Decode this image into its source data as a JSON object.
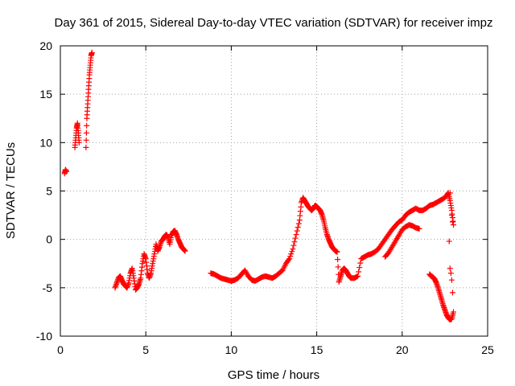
{
  "chart_data": {
    "type": "scatter",
    "title": "Day 361 of 2015, Sidereal Day-to-day VTEC variation (SDTVAR) for receiver impz",
    "xlabel": "GPS time / hours",
    "ylabel": "SDTVAR / TECUs",
    "xlim": [
      0,
      25
    ],
    "ylim": [
      -10,
      20
    ],
    "xticks": [
      0,
      5,
      10,
      15,
      20,
      25
    ],
    "yticks": [
      -10,
      -5,
      0,
      5,
      10,
      15,
      20
    ],
    "grid": true,
    "marker": "+",
    "series": [
      {
        "name": "SDTVAR",
        "color": "#ff0000",
        "x": [
          0.25,
          0.3,
          0.35,
          0.85,
          0.9,
          0.95,
          1.0,
          1.05,
          1.1,
          1.5,
          1.55,
          1.6,
          1.65,
          1.7,
          1.75,
          1.8,
          1.85,
          3.2,
          3.3,
          3.4,
          3.5,
          3.6,
          3.7,
          3.8,
          3.9,
          4.0,
          4.1,
          4.2,
          4.3,
          4.4,
          4.5,
          4.6,
          4.7,
          4.8,
          4.9,
          5.0,
          5.1,
          5.2,
          5.3,
          5.4,
          5.5,
          5.6,
          5.7,
          5.8,
          5.9,
          6.0,
          6.1,
          6.2,
          6.3,
          6.4,
          6.5,
          6.6,
          6.7,
          6.8,
          6.9,
          7.0,
          7.1,
          7.2,
          7.3,
          8.8,
          9.0,
          9.2,
          9.4,
          9.6,
          9.8,
          10.0,
          10.2,
          10.4,
          10.6,
          10.8,
          11.0,
          11.2,
          11.4,
          11.6,
          11.8,
          12.0,
          12.2,
          12.4,
          12.6,
          12.8,
          13.0,
          13.2,
          13.4,
          13.6,
          13.8,
          14.0,
          14.1,
          14.2,
          14.3,
          14.4,
          14.5,
          14.6,
          14.7,
          14.8,
          14.9,
          15.0,
          15.1,
          15.2,
          15.3,
          15.4,
          15.5,
          15.6,
          15.7,
          15.8,
          15.9,
          16.0,
          16.1,
          16.2,
          16.3,
          16.4,
          16.5,
          16.6,
          16.7,
          16.8,
          16.9,
          17.0,
          17.2,
          17.4,
          17.6,
          17.8,
          18.0,
          18.2,
          18.4,
          18.6,
          18.8,
          19.0,
          19.2,
          19.4,
          19.6,
          19.8,
          20.0,
          20.2,
          20.4,
          20.6,
          20.8,
          21.0,
          21.2,
          21.4,
          21.6,
          21.8,
          22.0,
          22.2,
          22.4,
          22.6,
          22.7,
          22.8,
          22.9,
          23.0,
          19.0,
          19.2,
          19.4,
          19.6,
          19.8,
          20.0,
          20.2,
          20.4,
          20.6,
          20.8,
          21.0,
          21.6,
          21.7,
          21.8,
          21.9,
          22.0,
          22.1,
          22.2,
          22.3,
          22.4,
          22.5,
          22.6,
          22.7,
          22.8,
          22.9,
          23.0
        ],
        "y": [
          6.8,
          7.2,
          7.0,
          9.5,
          10.5,
          11.5,
          12.0,
          11.0,
          10.0,
          9.5,
          12.5,
          14.0,
          15.5,
          17.0,
          18.0,
          19.0,
          19.3,
          -5.0,
          -4.5,
          -4.0,
          -3.8,
          -4.2,
          -4.6,
          -4.8,
          -5.0,
          -4.5,
          -3.5,
          -3.0,
          -4.0,
          -5.2,
          -5.0,
          -4.6,
          -4.0,
          -2.5,
          -1.5,
          -2.0,
          -3.5,
          -4.0,
          -3.5,
          -2.5,
          -1.5,
          -0.5,
          -1.2,
          -0.8,
          -0.2,
          0.0,
          0.3,
          0.5,
          0.2,
          -0.5,
          0.4,
          0.8,
          0.9,
          0.5,
          0.0,
          -0.4,
          -0.8,
          -1.0,
          -1.2,
          -3.5,
          -3.6,
          -3.8,
          -4.0,
          -4.1,
          -4.2,
          -4.3,
          -4.2,
          -4.0,
          -3.6,
          -3.2,
          -3.8,
          -4.2,
          -4.3,
          -4.1,
          -3.9,
          -3.8,
          -3.9,
          -4.0,
          -3.8,
          -3.5,
          -3.2,
          -2.5,
          -2.0,
          -1.0,
          0.5,
          2.0,
          3.8,
          4.3,
          4.0,
          3.7,
          3.4,
          3.2,
          3.0,
          3.2,
          3.5,
          3.4,
          3.2,
          3.0,
          2.6,
          2.0,
          1.2,
          0.5,
          0.0,
          -0.4,
          -0.8,
          -1.0,
          -1.2,
          -1.3,
          -4.4,
          -3.8,
          -3.2,
          -3.0,
          -3.2,
          -3.5,
          -3.8,
          -4.0,
          -4.0,
          -3.8,
          -2.0,
          -1.8,
          -1.6,
          -1.5,
          -1.3,
          -1.0,
          -0.5,
          0.0,
          0.5,
          1.0,
          1.4,
          1.8,
          2.0,
          2.5,
          2.8,
          3.0,
          3.2,
          3.0,
          3.0,
          3.2,
          3.5,
          3.6,
          3.8,
          4.0,
          4.2,
          4.5,
          4.8,
          4.0,
          3.0,
          1.5,
          -1.8,
          -1.4,
          -0.8,
          -0.2,
          0.4,
          1.0,
          1.3,
          1.5,
          1.4,
          1.2,
          1.1,
          -3.6,
          -3.8,
          -3.9,
          -4.1,
          -4.5,
          -5.0,
          -5.6,
          -6.2,
          -6.8,
          -7.3,
          -7.8,
          -8.1,
          -8.3,
          -8.2,
          -7.5
        ]
      }
    ],
    "extra_points": [
      {
        "x": 22.75,
        "y": -0.2
      },
      {
        "x": 22.8,
        "y": -3.0
      },
      {
        "x": 22.85,
        "y": -3.5
      },
      {
        "x": 22.9,
        "y": -4.2
      },
      {
        "x": 22.95,
        "y": -5.5
      },
      {
        "x": 22.8,
        "y": 4.8
      },
      {
        "x": 22.9,
        "y": 2.5
      },
      {
        "x": 22.95,
        "y": 1.8
      }
    ]
  }
}
